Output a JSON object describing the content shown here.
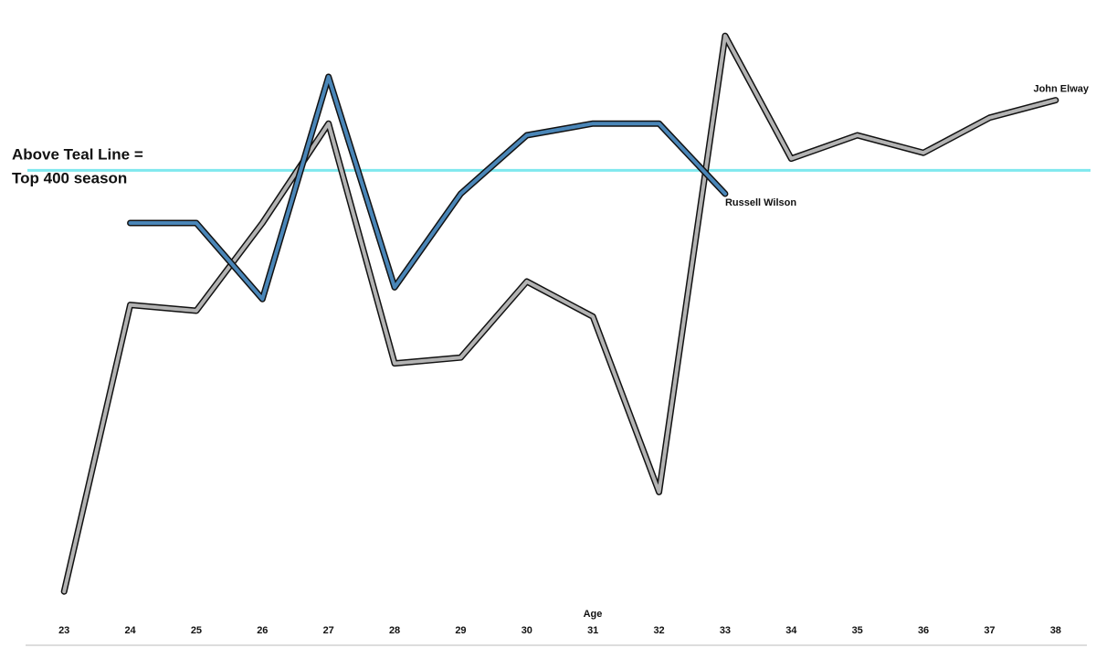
{
  "chart_data": {
    "type": "line",
    "xlabel": "Age",
    "x": [
      23,
      24,
      25,
      26,
      27,
      28,
      29,
      30,
      31,
      32,
      33,
      34,
      35,
      36,
      37,
      38
    ],
    "xlim": [
      22.5,
      38.5
    ],
    "xticks": [
      23,
      24,
      25,
      26,
      27,
      28,
      29,
      30,
      31,
      32,
      33,
      34,
      35,
      36,
      37,
      38
    ],
    "ylim": [
      0,
      100
    ],
    "series": [
      {
        "name": "John Elway",
        "color": "#b3b3b3",
        "values": [
          2,
          51,
          50,
          65,
          82,
          41,
          42,
          55,
          49,
          19,
          97,
          76,
          80,
          77,
          83,
          86
        ]
      },
      {
        "name": "Russell Wilson",
        "color": "#4a86b8",
        "values": [
          null,
          65,
          65,
          52,
          90,
          54,
          70,
          80,
          82,
          82,
          70,
          null,
          null,
          null,
          null,
          null
        ]
      }
    ],
    "reference_line": {
      "value": 74,
      "color": "#7fe8ee"
    },
    "annotation": [
      "Above Teal Line =",
      "Top 400 season"
    ]
  }
}
